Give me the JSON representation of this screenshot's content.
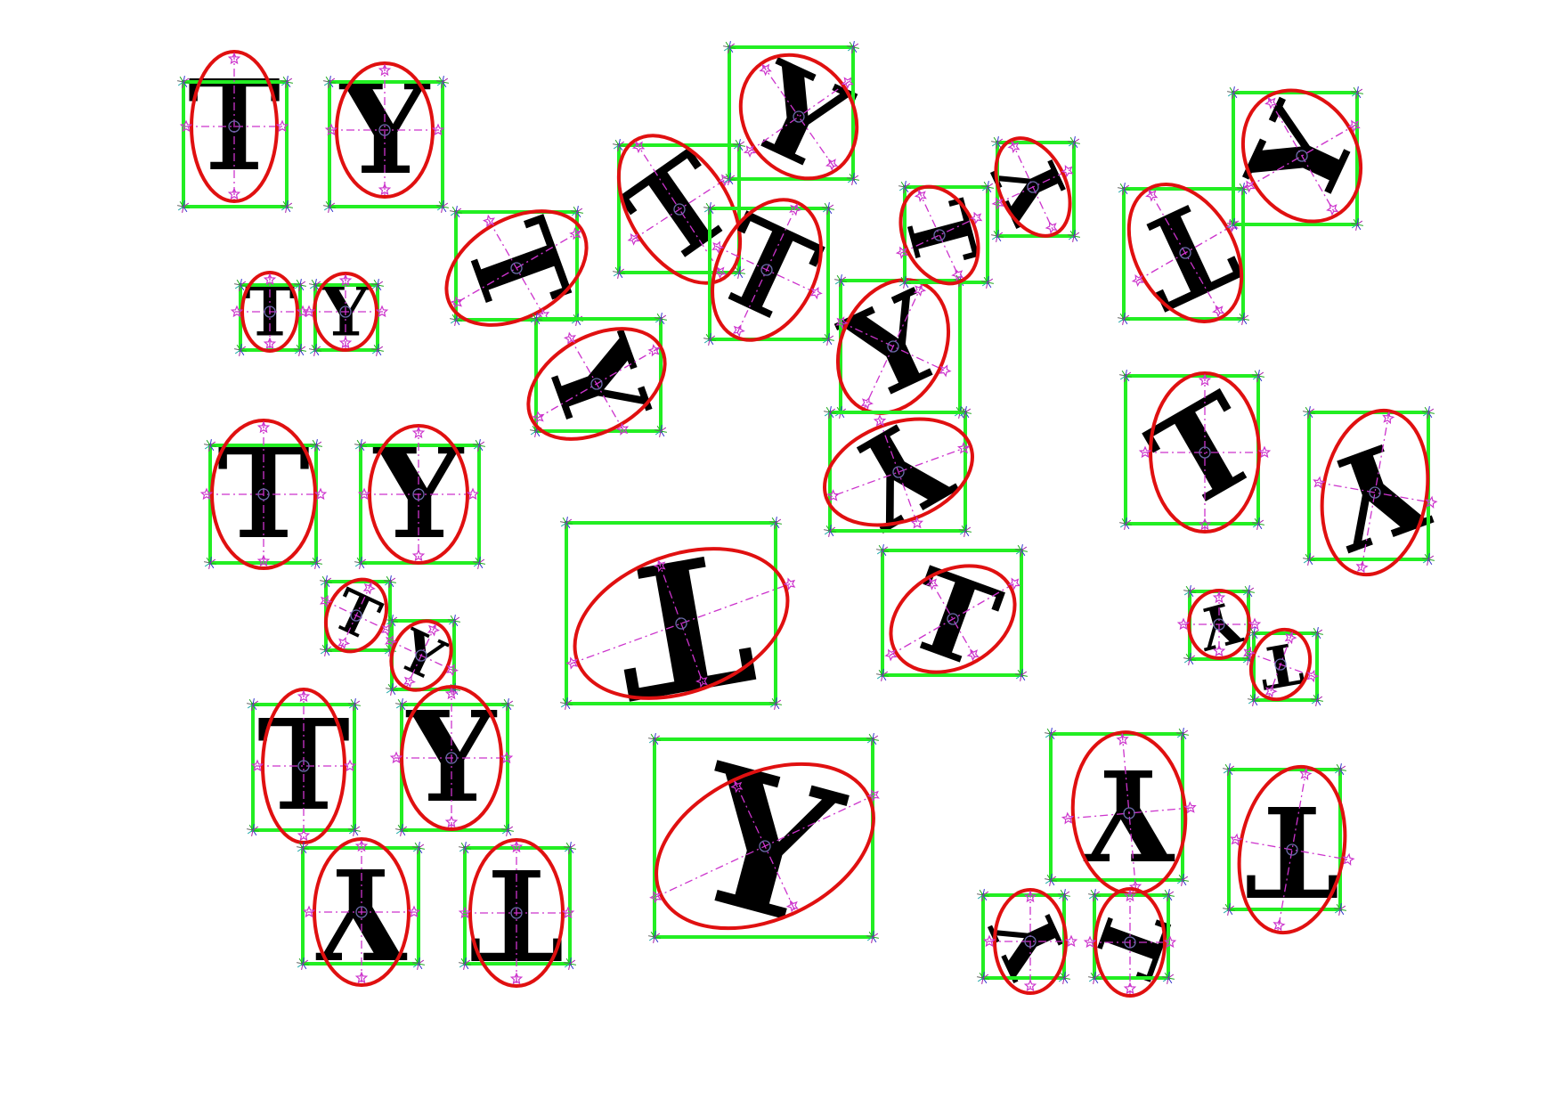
{
  "colors": {
    "background": "#ffffff",
    "glyph": "#000000",
    "bounding_box": "#22ee22",
    "ellipse": "#e01010",
    "axis": "#cc33cc",
    "centroid": "#6a6aa8",
    "marker": "#cc33cc",
    "corner_spikes": [
      "#22aa22",
      "#3333cc",
      "#aa22aa",
      "#22aaaa",
      "#666666"
    ]
  },
  "icons": {
    "marker": "star-icon",
    "centroid": "circle-icon"
  },
  "objects": [
    {
      "letter": "T",
      "rotation_deg": 0
    },
    {
      "letter": "Y",
      "rotation_deg": 0
    },
    {
      "letter": "T",
      "rotation_deg": 0
    },
    {
      "letter": "Y",
      "rotation_deg": 0
    },
    {
      "letter": "T",
      "rotation_deg": 0
    },
    {
      "letter": "Y",
      "rotation_deg": 0
    },
    {
      "letter": "T",
      "rotation_deg": 25
    },
    {
      "letter": "Y",
      "rotation_deg": 25
    },
    {
      "letter": "T",
      "rotation_deg": 0
    },
    {
      "letter": "Y",
      "rotation_deg": 0
    },
    {
      "letter": "Y",
      "rotation_deg": 180
    },
    {
      "letter": "T",
      "rotation_deg": 180
    },
    {
      "letter": "T",
      "rotation_deg": 70
    },
    {
      "letter": "Y",
      "rotation_deg": 70
    },
    {
      "letter": "T",
      "rotation_deg": -35
    },
    {
      "letter": "T",
      "rotation_deg": 25
    },
    {
      "letter": "Y",
      "rotation_deg": 25
    },
    {
      "letter": "Y",
      "rotation_deg": -25
    },
    {
      "letter": "T",
      "rotation_deg": 75
    },
    {
      "letter": "Y",
      "rotation_deg": -115
    },
    {
      "letter": "Y",
      "rotation_deg": 150
    },
    {
      "letter": "T",
      "rotation_deg": 155
    },
    {
      "letter": "Y",
      "rotation_deg": -65
    },
    {
      "letter": "T",
      "rotation_deg": -30
    },
    {
      "letter": "Y",
      "rotation_deg": 160
    },
    {
      "letter": "T",
      "rotation_deg": 170
    },
    {
      "letter": "T",
      "rotation_deg": 20
    },
    {
      "letter": "Y",
      "rotation_deg": 15
    },
    {
      "letter": "Y",
      "rotation_deg": 165
    },
    {
      "letter": "T",
      "rotation_deg": 170
    },
    {
      "letter": "Y",
      "rotation_deg": 180
    },
    {
      "letter": "T",
      "rotation_deg": 180
    },
    {
      "letter": "Y",
      "rotation_deg": -115
    },
    {
      "letter": "T",
      "rotation_deg": 110
    }
  ]
}
